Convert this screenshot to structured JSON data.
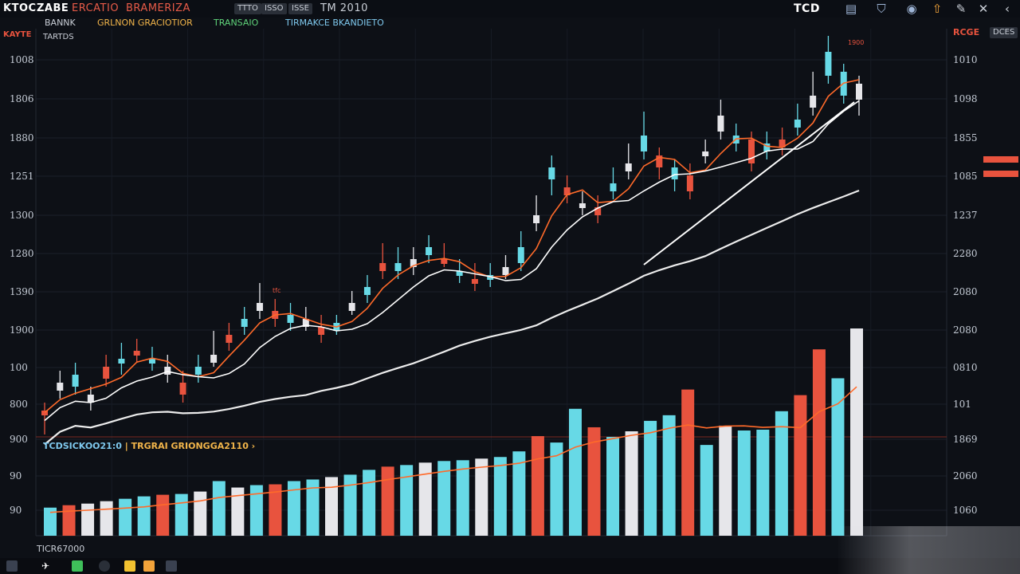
{
  "topbar": {
    "t1": "KTOC",
    "t2": "ZABE",
    "t3": "ERCATIO",
    "t4": "BRAMERIZA",
    "pill1": "TTTO",
    "pill2": "ISSO",
    "pill3": "ISSE",
    "t5": "TM 2010",
    "right_title": "TCD"
  },
  "subbar": {
    "s0": "KAYTE",
    "s1": "BANNK",
    "s2": "GRLNON GRACIOTIOR",
    "s3": "TRANSAIO",
    "s4": "TIRMAKCE BKANDIETO",
    "chart_tag": "TARTDS",
    "right_tag": "RCGE",
    "right_pill": "DCES"
  },
  "volume_header": {
    "left": "TCDSICKOO21:0",
    "sep": "|",
    "right": "TRGRAI GRIONGGA2110 ›"
  },
  "footer_label": "TICR67000",
  "left_axis": [
    "1008",
    "1806",
    "1880",
    "1251",
    "1300",
    "1280",
    "1390",
    "1900",
    "100",
    "800",
    "900",
    "90",
    "90"
  ],
  "right_axis": [
    "1010",
    "1098",
    "1855",
    "1085",
    "1237",
    "2280",
    "2080",
    "2080",
    "0810",
    "101",
    "1869",
    "2060",
    "1060"
  ],
  "annotations": {
    "a1": "tfc",
    "a2": "1900"
  },
  "colors": {
    "up": "#67d9e6",
    "down": "#e8533e",
    "neutral": "#e6e6ea",
    "ma_fast": "#ffffff",
    "ma_slow": "#ffffff",
    "ma_orange": "#ff6a2a",
    "alert": "#e8533e"
  },
  "chart_data": {
    "type": "candlestick",
    "candles": [
      [
        "#e8533e",
        520,
        515,
        505,
        545
      ],
      [
        "#e6e6ea",
        480,
        490,
        465,
        500
      ],
      [
        "#67d9e6",
        485,
        470,
        455,
        495
      ],
      [
        "#e6e6ea",
        505,
        495,
        485,
        515
      ],
      [
        "#e8533e",
        460,
        475,
        445,
        485
      ],
      [
        "#67d9e6",
        455,
        450,
        430,
        470
      ],
      [
        "#e8533e",
        440,
        445,
        425,
        455
      ],
      [
        "#67d9e6",
        450,
        455,
        435,
        465
      ],
      [
        "#e6e6ea",
        470,
        460,
        445,
        480
      ],
      [
        "#e8533e",
        480,
        495,
        465,
        505
      ],
      [
        "#67d9e6",
        470,
        460,
        445,
        480
      ],
      [
        "#e6e6ea",
        445,
        455,
        415,
        460
      ],
      [
        "#e8533e",
        430,
        420,
        405,
        440
      ],
      [
        "#67d9e6",
        410,
        400,
        385,
        420
      ],
      [
        "#e6e6ea",
        390,
        380,
        355,
        400
      ],
      [
        "#e8533e",
        400,
        390,
        375,
        410
      ],
      [
        "#67d9e6",
        395,
        405,
        380,
        415
      ],
      [
        "#e6e6ea",
        400,
        410,
        385,
        415
      ],
      [
        "#e8533e",
        410,
        420,
        395,
        430
      ],
      [
        "#67d9e6",
        405,
        415,
        395,
        420
      ],
      [
        "#e6e6ea",
        390,
        380,
        365,
        395
      ],
      [
        "#67d9e6",
        370,
        360,
        345,
        380
      ],
      [
        "#e8533e",
        340,
        330,
        305,
        350
      ],
      [
        "#67d9e6",
        330,
        340,
        310,
        350
      ],
      [
        "#e6e6ea",
        335,
        325,
        310,
        345
      ],
      [
        "#67d9e6",
        320,
        310,
        295,
        330
      ],
      [
        "#e8533e",
        325,
        330,
        305,
        335
      ],
      [
        "#67d9e6",
        345,
        340,
        325,
        355
      ],
      [
        "#e8533e",
        350,
        355,
        330,
        365
      ],
      [
        "#67d9e6",
        345,
        350,
        330,
        360
      ],
      [
        "#e6e6ea",
        335,
        345,
        320,
        350
      ],
      [
        "#67d9e6",
        330,
        310,
        290,
        340
      ],
      [
        "#e6e6ea",
        280,
        270,
        245,
        290
      ],
      [
        "#67d9e6",
        225,
        210,
        195,
        245
      ],
      [
        "#e8533e",
        235,
        245,
        220,
        255
      ],
      [
        "#e6e6ea",
        255,
        260,
        240,
        270
      ],
      [
        "#e8533e",
        260,
        270,
        245,
        280
      ],
      [
        "#67d9e6",
        240,
        230,
        210,
        250
      ],
      [
        "#e6e6ea",
        215,
        205,
        180,
        225
      ],
      [
        "#67d9e6",
        190,
        170,
        140,
        200
      ],
      [
        "#e8533e",
        195,
        210,
        185,
        225
      ],
      [
        "#67d9e6",
        210,
        225,
        200,
        240
      ],
      [
        "#e8533e",
        220,
        240,
        205,
        250
      ],
      [
        "#e6e6ea",
        195,
        190,
        175,
        205
      ],
      [
        "#e6e6ea",
        165,
        145,
        125,
        175
      ],
      [
        "#67d9e6",
        170,
        180,
        155,
        190
      ],
      [
        "#e8533e",
        175,
        205,
        165,
        215
      ],
      [
        "#67d9e6",
        180,
        190,
        165,
        200
      ],
      [
        "#e8533e",
        175,
        185,
        160,
        195
      ],
      [
        "#67d9e6",
        160,
        150,
        130,
        170
      ],
      [
        "#e6e6ea",
        135,
        120,
        90,
        145
      ],
      [
        "#67d9e6",
        95,
        65,
        45,
        105
      ],
      [
        "#67d9e6",
        90,
        120,
        80,
        130
      ],
      [
        "#e6e6ea",
        105,
        125,
        95,
        145
      ]
    ],
    "volume": [
      [
        "#67d9e6",
        35
      ],
      [
        "#e8533e",
        38
      ],
      [
        "#e6e6ea",
        40
      ],
      [
        "#e6e6ea",
        43
      ],
      [
        "#67d9e6",
        46
      ],
      [
        "#67d9e6",
        49
      ],
      [
        "#e8533e",
        51
      ],
      [
        "#67d9e6",
        52
      ],
      [
        "#e6e6ea",
        55
      ],
      [
        "#67d9e6",
        68
      ],
      [
        "#e6e6ea",
        60
      ],
      [
        "#67d9e6",
        63
      ],
      [
        "#e8533e",
        64
      ],
      [
        "#67d9e6",
        68
      ],
      [
        "#67d9e6",
        70
      ],
      [
        "#e6e6ea",
        73
      ],
      [
        "#67d9e6",
        76
      ],
      [
        "#67d9e6",
        82
      ],
      [
        "#e8533e",
        86
      ],
      [
        "#67d9e6",
        88
      ],
      [
        "#e6e6ea",
        91
      ],
      [
        "#67d9e6",
        93
      ],
      [
        "#67d9e6",
        94
      ],
      [
        "#e6e6ea",
        96
      ],
      [
        "#67d9e6",
        98
      ],
      [
        "#67d9e6",
        105
      ],
      [
        "#e8533e",
        124
      ],
      [
        "#67d9e6",
        116
      ],
      [
        "#67d9e6",
        158
      ],
      [
        "#e8533e",
        135
      ],
      [
        "#67d9e6",
        123
      ],
      [
        "#e6e6ea",
        130
      ],
      [
        "#67d9e6",
        143
      ],
      [
        "#67d9e6",
        150
      ],
      [
        "#e8533e",
        182
      ],
      [
        "#67d9e6",
        113
      ],
      [
        "#e6e6ea",
        137
      ],
      [
        "#67d9e6",
        131
      ],
      [
        "#67d9e6",
        132
      ],
      [
        "#67d9e6",
        155
      ],
      [
        "#e8533e",
        175
      ],
      [
        "#e8533e",
        232
      ],
      [
        "#67d9e6",
        196
      ],
      [
        "#e6e6ea",
        258
      ]
    ]
  }
}
